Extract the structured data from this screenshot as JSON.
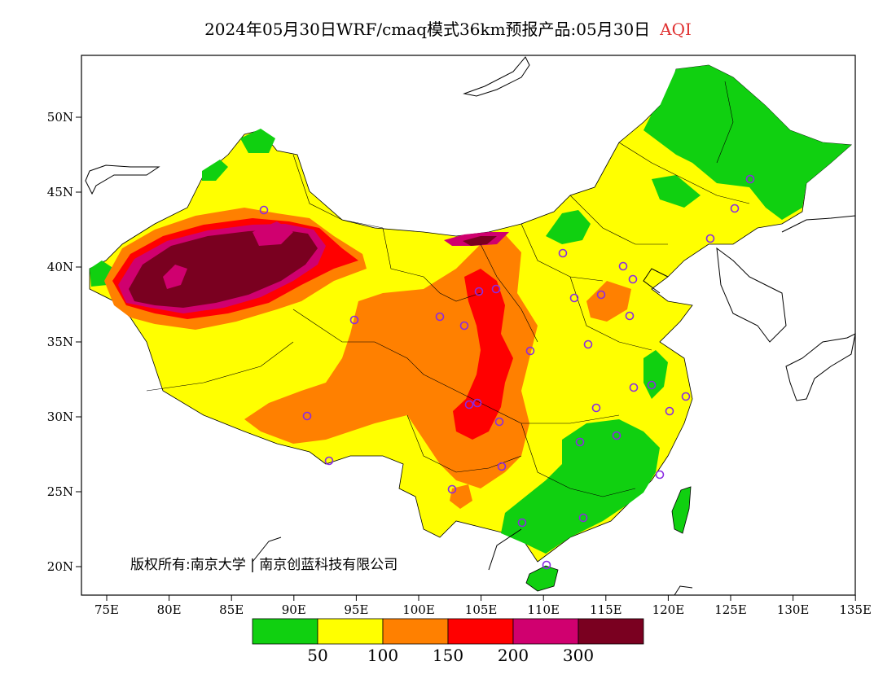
{
  "header": {
    "title": "2024年05月30日WRF/cmaq模式36km预报产品:05月30日",
    "variable": "AQI"
  },
  "copyright": "版权所有:南京大学 | 南京创蓝科技有限公司",
  "axes": {
    "y_ticks": [
      "50N",
      "45N",
      "40N",
      "35N",
      "30N",
      "25N",
      "20N"
    ],
    "x_ticks": [
      "75E",
      "80E",
      "85E",
      "90E",
      "95E",
      "100E",
      "105E",
      "110E",
      "115E",
      "120E",
      "125E",
      "130E",
      "135E"
    ]
  },
  "legend": {
    "colors": [
      "#10d010",
      "#ffff00",
      "#ff8000",
      "#ff0000",
      "#d0006f",
      "#7a0020"
    ],
    "labels": [
      "50",
      "100",
      "150",
      "200",
      "300"
    ]
  },
  "palette": {
    "green": "#10d010",
    "yellow": "#ffff00",
    "orange": "#ff8000",
    "red": "#ff0000",
    "magenta": "#d0006f",
    "maroon": "#7a0020",
    "station": "#8a2be2"
  },
  "stations_label_icon": "circle-station-icon"
}
